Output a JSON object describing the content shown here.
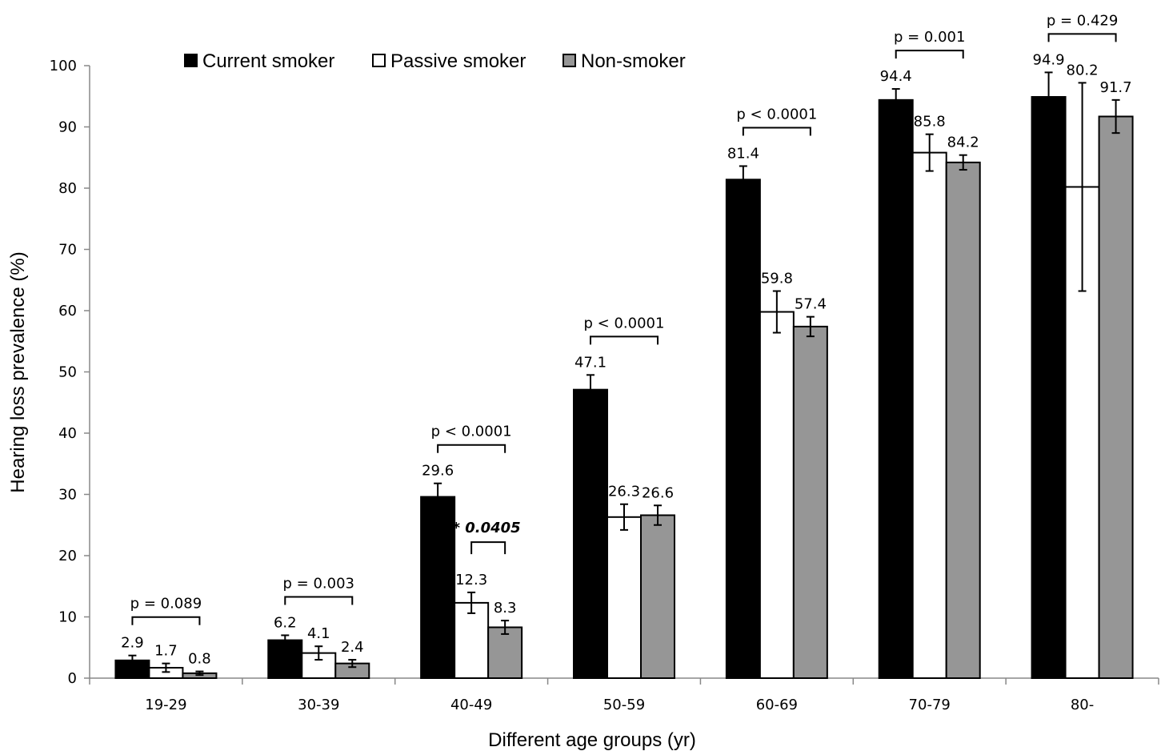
{
  "chart_data": {
    "type": "bar",
    "xlabel": "Different age groups (yr)",
    "ylabel": "Hearing loss prevalence (%)",
    "ylim": [
      0,
      100
    ],
    "yticks": [
      0,
      10,
      20,
      30,
      40,
      50,
      60,
      70,
      80,
      90,
      100
    ],
    "categories": [
      "19-29",
      "30-39",
      "40-49",
      "50-59",
      "60-69",
      "70-79",
      "80-"
    ],
    "series": [
      {
        "name": "Current smoker",
        "color": "#000000",
        "values": [
          2.9,
          6.2,
          29.6,
          47.1,
          81.4,
          94.4,
          94.9
        ],
        "err_low": [
          2.2,
          5.4,
          27.6,
          44.8,
          79.2,
          92.6,
          90.9
        ],
        "err_high": [
          3.7,
          7.0,
          31.8,
          49.5,
          83.6,
          96.2,
          98.9
        ]
      },
      {
        "name": "Passive smoker",
        "color": "#ffffff",
        "values": [
          1.7,
          4.1,
          12.3,
          26.3,
          59.8,
          85.8,
          80.2
        ],
        "err_low": [
          1.0,
          3.0,
          10.6,
          24.2,
          56.4,
          82.8,
          63.2
        ],
        "err_high": [
          2.4,
          5.2,
          14.0,
          28.4,
          63.2,
          88.8,
          97.2
        ]
      },
      {
        "name": "Non-smoker",
        "color": "#969696",
        "values": [
          0.8,
          2.4,
          8.3,
          26.6,
          57.4,
          84.2,
          91.7
        ],
        "err_low": [
          0.5,
          1.8,
          7.2,
          25.0,
          55.8,
          83.0,
          89.0
        ],
        "err_high": [
          1.1,
          3.0,
          9.4,
          28.2,
          59.0,
          85.4,
          94.4
        ]
      }
    ],
    "data_labels": [
      [
        "2.9",
        "6.2",
        "29.6",
        "47.1",
        "81.4",
        "94.4",
        "94.9"
      ],
      [
        "1.7",
        "4.1",
        "12.3",
        "26.3",
        "59.8",
        "85.8",
        "80.2"
      ],
      [
        "0.8",
        "2.4",
        "8.3",
        "26.6",
        "57.4",
        "84.2",
        "91.7"
      ]
    ],
    "p_values": [
      "p = 0.089",
      "p = 0.003",
      "p < 0.0001",
      "p < 0.0001",
      "p < 0.0001",
      "p = 0.001",
      "p = 0.429"
    ],
    "extra_annotation": {
      "text": "* 0.0405",
      "category": "40-49",
      "between": "Passive smoker vs Non-smoker"
    },
    "legend_position": "top-left",
    "grid": false
  }
}
